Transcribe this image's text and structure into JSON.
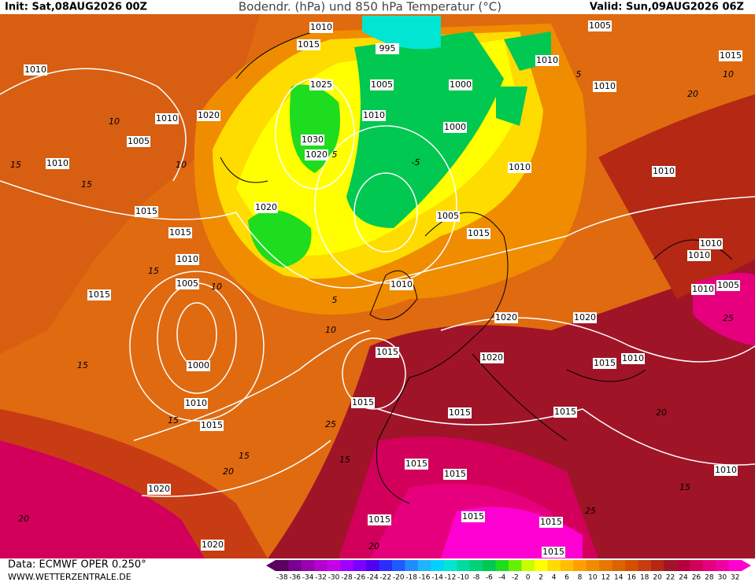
{
  "header": {
    "init": "Init: Sat,08AUG2026 00Z",
    "title": "Bodendr. (hPa) und 850 hPa Temperatur (°C)",
    "valid": "Valid: Sun,09AUG2026 06Z"
  },
  "footer": {
    "data_source": "Data: ECMWF OPER 0.250°",
    "website": "WWW.WETTERZENTRALE.DE"
  },
  "isobar_labels": [
    "1010",
    "1015",
    "995",
    "1005",
    "1015",
    "1010",
    "1010",
    "1025",
    "1005",
    "1000",
    "1010",
    "1010",
    "1020",
    "1010",
    "1000",
    "1005",
    "1030",
    "1020",
    "1010",
    "1010",
    "1010",
    "1015",
    "1020",
    "1005",
    "1015",
    "1015",
    "1010",
    "1010",
    "1010",
    "1005",
    "1010",
    "1005",
    "1010",
    "1015",
    "1020",
    "1020",
    "1015",
    "1020",
    "1015",
    "1010",
    "1000",
    "1015",
    "1010",
    "1015",
    "1015",
    "1015",
    "1015",
    "1015",
    "1010",
    "1020",
    "1015",
    "1015",
    "1015",
    "1020",
    "1015"
  ],
  "isotherm_labels": [
    "10",
    "15",
    "15",
    "10",
    "5",
    "5",
    "-5",
    "15",
    "5",
    "15",
    "10",
    "15",
    "10",
    "20",
    "15",
    "15",
    "20",
    "10",
    "20",
    "25",
    "15",
    "20",
    "25",
    "20",
    "25"
  ],
  "colorbar": {
    "labels": [
      -38,
      -36,
      -34,
      -32,
      -30,
      -28,
      -26,
      -24,
      -22,
      -20,
      -18,
      -16,
      -14,
      -12,
      -10,
      -8,
      -6,
      -4,
      -2,
      0,
      2,
      4,
      6,
      8,
      10,
      12,
      14,
      16,
      18,
      20,
      22,
      24,
      26,
      28,
      30,
      32
    ],
    "colors": [
      "#5a0060",
      "#7a0090",
      "#9a00b0",
      "#b400d0",
      "#c800e8",
      "#a000ff",
      "#7a00ff",
      "#5000f0",
      "#2c2cff",
      "#1e5aff",
      "#1e8cff",
      "#1eb4ff",
      "#00d2ff",
      "#00e6d2",
      "#00dca0",
      "#00d278",
      "#00c850",
      "#1edc1e",
      "#64f000",
      "#c8ff00",
      "#ffff00",
      "#ffdc00",
      "#ffbe00",
      "#ffa000",
      "#f08c00",
      "#e67800",
      "#dc6400",
      "#d25000",
      "#c83c14",
      "#b42814",
      "#a01428",
      "#b4003c",
      "#d2005a",
      "#e6007d",
      "#f000a0",
      "#ff00d2"
    ]
  }
}
